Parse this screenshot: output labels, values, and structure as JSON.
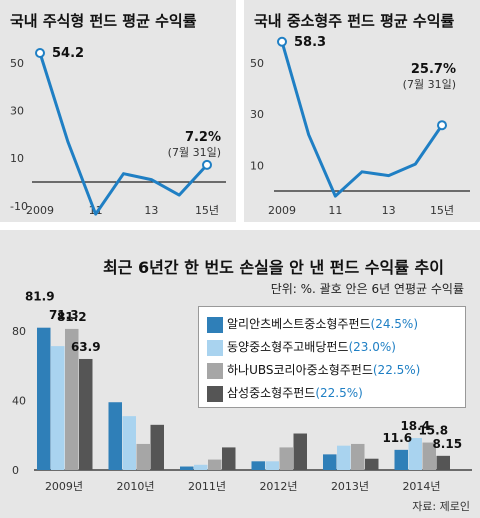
{
  "chart_data": [
    {
      "type": "line",
      "title": "국내 주식형 펀드 평균 수익률",
      "x": [
        2009,
        2010,
        2011,
        2012,
        2013,
        2014,
        2015
      ],
      "values": [
        54.2,
        17.0,
        -13.5,
        3.5,
        1.0,
        -5.5,
        7.2
      ],
      "xtick_labels": [
        "2009",
        "11",
        "13",
        "15년"
      ],
      "ytick_labels": [
        "50",
        "30",
        "10",
        "-10"
      ],
      "ylim": [
        -15,
        60
      ],
      "color": "#1f7fc4",
      "annotations": [
        {
          "label": "54.2"
        },
        {
          "label": "7.2%",
          "sub": "(7월 31일)"
        }
      ]
    },
    {
      "type": "line",
      "title": "국내 중소형주 펀드 평균 수익률",
      "x": [
        2009,
        2010,
        2011,
        2012,
        2013,
        2014,
        2015
      ],
      "values": [
        58.3,
        22.0,
        -2.0,
        7.5,
        6.0,
        10.5,
        25.7
      ],
      "xtick_labels": [
        "2009",
        "11",
        "13",
        "15년"
      ],
      "ytick_labels": [
        "50",
        "30",
        "10"
      ],
      "ylim": [
        -5,
        62
      ],
      "color": "#1f7fc4",
      "annotations": [
        {
          "label": "58.3"
        },
        {
          "label": "25.7%",
          "sub": "(7월 31일)"
        }
      ]
    },
    {
      "type": "bar",
      "title": "최근 6년간 한 번도 손실을 안 낸 펀드 수익률 추이",
      "subtitle": "단위: %. 괄호 안은 6년 연평균 수익률",
      "categories": [
        "2009년",
        "2010년",
        "2011년",
        "2012년",
        "2013년",
        "2014년"
      ],
      "ytick_labels": [
        "80",
        "40",
        "0"
      ],
      "ylim": [
        0,
        90
      ],
      "series": [
        {
          "name": "알리안츠베스트중소형주펀드",
          "avg": "(24.5%)",
          "color": "#2f7fb8",
          "values": [
            81.9,
            39.0,
            2.0,
            5.0,
            9.0,
            11.6
          ]
        },
        {
          "name": "동양중소형주고배당펀드",
          "avg": "(23.0%)",
          "color": "#a9d3ef",
          "values": [
            71.3,
            31.0,
            3.0,
            5.0,
            14.0,
            18.4
          ]
        },
        {
          "name": "하나UBS코리아중소형주펀드",
          "avg": "(22.5%)",
          "color": "#a6a6a6",
          "values": [
            81.2,
            15.0,
            6.0,
            13.0,
            15.0,
            15.8
          ]
        },
        {
          "name": "삼성중소형주펀드",
          "avg": "(22.5%)",
          "color": "#555555",
          "values": [
            63.9,
            26.0,
            13.0,
            21.0,
            6.5,
            8.15
          ]
        }
      ],
      "data_labels": [
        {
          "series": 0,
          "category": 0,
          "label": "81.9"
        },
        {
          "series": 1,
          "category": 0,
          "label": "71.3"
        },
        {
          "series": 2,
          "category": 0,
          "label": "81.2"
        },
        {
          "series": 3,
          "category": 0,
          "label": "63.9"
        },
        {
          "series": 0,
          "category": 5,
          "label": "11.6"
        },
        {
          "series": 1,
          "category": 5,
          "label": "18.4"
        },
        {
          "series": 2,
          "category": 5,
          "label": "15.8"
        },
        {
          "series": 3,
          "category": 5,
          "label": "8.15"
        }
      ]
    }
  ],
  "source": "자료: 제로인"
}
